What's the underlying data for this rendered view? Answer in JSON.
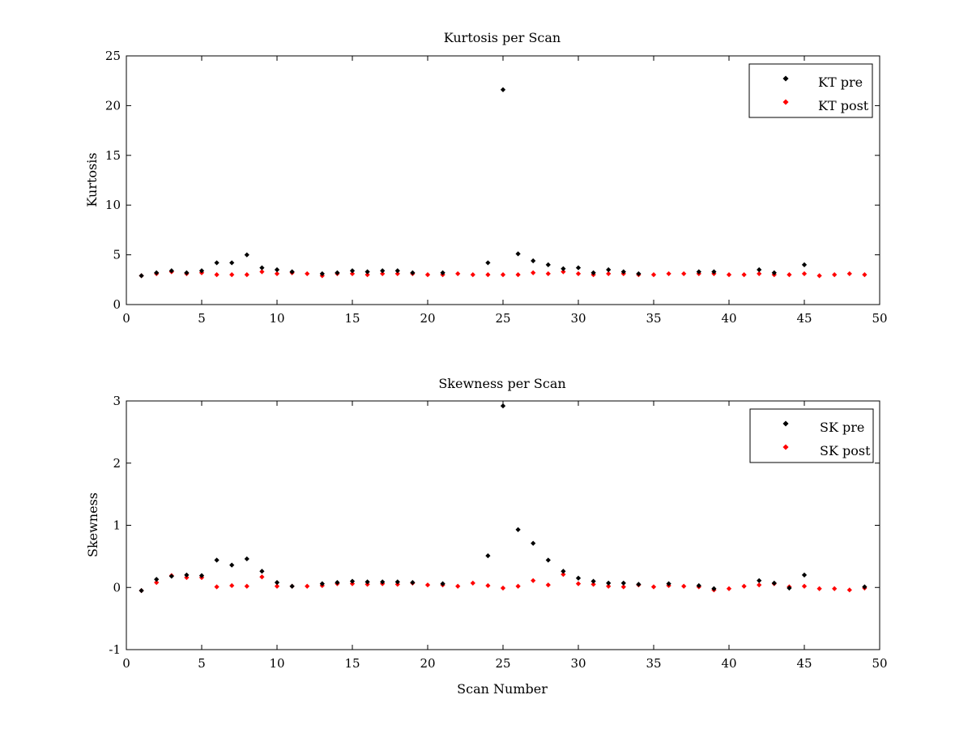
{
  "chart_data": [
    {
      "type": "scatter",
      "title": "Kurtosis per Scan",
      "xlabel": "",
      "ylabel": "Kurtosis",
      "xlim": [
        0,
        50
      ],
      "ylim": [
        0,
        25
      ],
      "xticks": [
        "0",
        "5",
        "10",
        "15",
        "20",
        "25",
        "30",
        "35",
        "40",
        "45",
        "50"
      ],
      "yticks": [
        "0",
        "5",
        "10",
        "15",
        "20",
        "25"
      ],
      "grid": false,
      "legend_position": "top-right",
      "series": [
        {
          "name": "KT pre",
          "color": "#000000",
          "x": [
            1,
            2,
            3,
            4,
            5,
            6,
            7,
            8,
            9,
            10,
            11,
            13,
            14,
            15,
            16,
            17,
            18,
            19,
            21,
            24,
            25,
            26,
            27,
            28,
            29,
            30,
            31,
            32,
            33,
            34,
            38,
            39,
            42,
            43,
            45
          ],
          "values": [
            2.9,
            3.2,
            3.4,
            3.2,
            3.4,
            4.2,
            4.2,
            5.0,
            3.7,
            3.5,
            3.3,
            3.1,
            3.2,
            3.4,
            3.3,
            3.4,
            3.4,
            3.2,
            3.2,
            4.2,
            21.6,
            5.1,
            4.4,
            4.0,
            3.6,
            3.7,
            3.2,
            3.5,
            3.3,
            3.1,
            3.3,
            3.3,
            3.5,
            3.2,
            4.0
          ]
        },
        {
          "name": "KT post",
          "color": "#ff0000",
          "x": [
            1,
            2,
            3,
            4,
            5,
            6,
            7,
            8,
            9,
            10,
            11,
            12,
            13,
            14,
            15,
            16,
            17,
            18,
            19,
            20,
            21,
            22,
            23,
            24,
            25,
            26,
            27,
            28,
            29,
            30,
            31,
            32,
            33,
            34,
            35,
            36,
            37,
            38,
            39,
            40,
            41,
            42,
            43,
            44,
            45,
            46,
            47,
            48,
            49
          ],
          "values": [
            2.9,
            3.1,
            3.3,
            3.1,
            3.2,
            3.0,
            3.0,
            3.0,
            3.3,
            3.1,
            3.2,
            3.1,
            2.9,
            3.1,
            3.1,
            3.0,
            3.1,
            3.1,
            3.1,
            3.0,
            3.0,
            3.1,
            3.0,
            3.0,
            3.0,
            3.0,
            3.2,
            3.1,
            3.3,
            3.1,
            3.0,
            3.1,
            3.1,
            3.0,
            3.0,
            3.1,
            3.1,
            3.1,
            3.1,
            3.0,
            3.0,
            3.1,
            3.0,
            3.0,
            3.1,
            2.9,
            3.0,
            3.1,
            3.0
          ]
        }
      ]
    },
    {
      "type": "scatter",
      "title": "Skewness per Scan",
      "xlabel": "Scan Number",
      "ylabel": "Skewness",
      "xlim": [
        0,
        50
      ],
      "ylim": [
        -1,
        3
      ],
      "xticks": [
        "0",
        "5",
        "10",
        "15",
        "20",
        "25",
        "30",
        "35",
        "40",
        "45",
        "50"
      ],
      "yticks": [
        "-1",
        "0",
        "1",
        "2",
        "3"
      ],
      "grid": false,
      "legend_position": "top-right",
      "series": [
        {
          "name": "SK pre",
          "color": "#000000",
          "x": [
            1,
            2,
            3,
            4,
            5,
            6,
            7,
            8,
            9,
            10,
            11,
            13,
            14,
            15,
            16,
            17,
            18,
            19,
            21,
            24,
            25,
            26,
            27,
            28,
            29,
            30,
            31,
            32,
            33,
            34,
            36,
            38,
            39,
            42,
            43,
            44,
            45,
            49
          ],
          "values": [
            -0.05,
            0.13,
            0.18,
            0.2,
            0.19,
            0.44,
            0.36,
            0.46,
            0.26,
            0.08,
            0.02,
            0.06,
            0.08,
            0.1,
            0.09,
            0.09,
            0.09,
            0.08,
            0.06,
            0.51,
            2.92,
            0.93,
            0.71,
            0.44,
            0.26,
            0.15,
            0.1,
            0.07,
            0.07,
            0.05,
            0.06,
            0.03,
            -0.02,
            0.11,
            0.07,
            -0.01,
            0.2,
            0.01
          ]
        },
        {
          "name": "SK post",
          "color": "#ff0000",
          "x": [
            1,
            2,
            3,
            4,
            5,
            6,
            7,
            8,
            9,
            10,
            11,
            12,
            13,
            14,
            15,
            16,
            17,
            18,
            19,
            20,
            21,
            22,
            23,
            24,
            25,
            26,
            27,
            28,
            29,
            30,
            31,
            32,
            33,
            34,
            35,
            36,
            37,
            38,
            39,
            40,
            41,
            42,
            43,
            44,
            45,
            46,
            47,
            48,
            49
          ],
          "values": [
            -0.05,
            0.08,
            0.19,
            0.16,
            0.16,
            0.01,
            0.03,
            0.02,
            0.17,
            0.02,
            0.02,
            0.02,
            0.03,
            0.06,
            0.06,
            0.05,
            0.06,
            0.05,
            0.07,
            0.04,
            0.04,
            0.02,
            0.07,
            0.03,
            -0.01,
            0.02,
            0.11,
            0.04,
            0.21,
            0.06,
            0.05,
            0.02,
            0.01,
            0.04,
            0.01,
            0.03,
            0.02,
            0.01,
            -0.04,
            -0.02,
            0.02,
            0.04,
            0.06,
            0.01,
            0.02,
            -0.02,
            -0.02,
            -0.04,
            -0.01
          ]
        }
      ]
    }
  ]
}
